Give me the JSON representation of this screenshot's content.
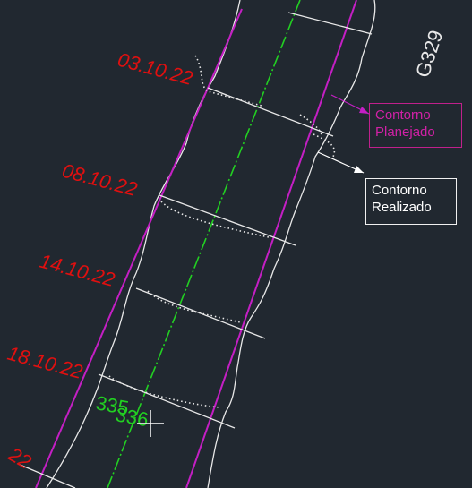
{
  "drawing": {
    "sheet_label": "G329",
    "date_labels": [
      "03.10.22",
      "08.10.22",
      "14.10.22",
      "18.10.22",
      "22"
    ],
    "station_labels": [
      "335",
      "336"
    ]
  },
  "legend": {
    "planned": {
      "line1": "Contorno",
      "line2": "Planejado",
      "color": "#d021a6"
    },
    "actual": {
      "line1": "Contorno",
      "line2": "Realizado",
      "color": "#ffffff"
    }
  },
  "colors": {
    "background": "#212830",
    "centerline": "#22d022",
    "date_text": "#e01010"
  }
}
